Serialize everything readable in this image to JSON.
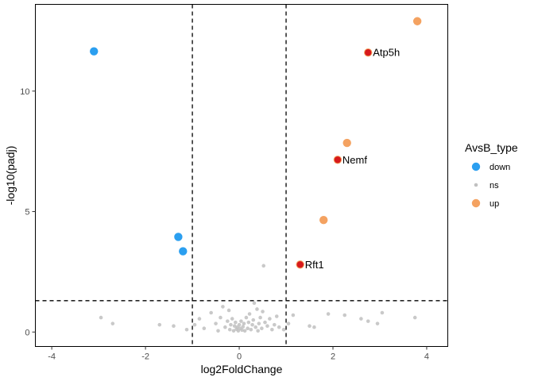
{
  "chart_data": {
    "type": "scatter",
    "title": "",
    "xlabel": "log2FoldChange",
    "ylabel": "-log10(padj)",
    "xlim": [
      -4.35,
      4.45
    ],
    "ylim": [
      -0.6,
      13.6
    ],
    "x_ticks": [
      -4,
      -2,
      0,
      2,
      4
    ],
    "y_ticks": [
      0,
      5,
      10
    ],
    "x_tick_labels": [
      "-4",
      "-2",
      "0",
      "2",
      "4"
    ],
    "y_tick_labels": [
      "0",
      "5",
      "10"
    ],
    "grid": false,
    "thresholds": {
      "log2fc": [
        -1,
        1
      ],
      "neg_log10_padj": 1.3
    },
    "colors": {
      "down": "#2b9ff0",
      "ns": "#c0c0c0",
      "up": "#f4a261",
      "highlight": "#d7191c"
    },
    "legend": {
      "title": "AvsB_type",
      "position": "right",
      "entries": [
        {
          "label": "down",
          "color": "#2b9ff0",
          "kind": "big"
        },
        {
          "label": "ns",
          "color": "#c0c0c0",
          "kind": "small"
        },
        {
          "label": "up",
          "color": "#f4a261",
          "kind": "big"
        }
      ]
    },
    "series": [
      {
        "name": "down",
        "points": [
          {
            "x": -3.1,
            "y": 11.65
          },
          {
            "x": -1.3,
            "y": 3.95
          },
          {
            "x": -1.2,
            "y": 3.35
          }
        ]
      },
      {
        "name": "up",
        "points": [
          {
            "x": 3.8,
            "y": 12.9
          },
          {
            "x": 2.75,
            "y": 11.6
          },
          {
            "x": 2.3,
            "y": 7.85
          },
          {
            "x": 2.1,
            "y": 7.15
          },
          {
            "x": 1.8,
            "y": 4.65
          },
          {
            "x": 1.3,
            "y": 2.8
          }
        ]
      },
      {
        "name": "ns",
        "points": [
          {
            "x": -2.95,
            "y": 0.6
          },
          {
            "x": -2.7,
            "y": 0.35
          },
          {
            "x": -1.7,
            "y": 0.3
          },
          {
            "x": -1.4,
            "y": 0.25
          },
          {
            "x": -1.12,
            "y": 0.1
          },
          {
            "x": -0.95,
            "y": 0.3
          },
          {
            "x": -0.85,
            "y": 0.55
          },
          {
            "x": -0.75,
            "y": 0.15
          },
          {
            "x": -0.6,
            "y": 0.8
          },
          {
            "x": -0.5,
            "y": 0.35
          },
          {
            "x": -0.45,
            "y": 0.05
          },
          {
            "x": -0.4,
            "y": 0.6
          },
          {
            "x": -0.35,
            "y": 1.05
          },
          {
            "x": -0.3,
            "y": 0.2
          },
          {
            "x": -0.25,
            "y": 0.45
          },
          {
            "x": -0.22,
            "y": 0.9
          },
          {
            "x": -0.2,
            "y": 0.1
          },
          {
            "x": -0.18,
            "y": 0.3
          },
          {
            "x": -0.15,
            "y": 0.55
          },
          {
            "x": -0.12,
            "y": 0.05
          },
          {
            "x": -0.1,
            "y": 0.25
          },
          {
            "x": -0.08,
            "y": 0.4
          },
          {
            "x": -0.06,
            "y": 0.12
          },
          {
            "x": -0.04,
            "y": 0.2
          },
          {
            "x": -0.02,
            "y": 0.05
          },
          {
            "x": 0.0,
            "y": 0.3
          },
          {
            "x": 0.02,
            "y": 0.15
          },
          {
            "x": 0.04,
            "y": 0.45
          },
          {
            "x": 0.06,
            "y": 0.08
          },
          {
            "x": 0.08,
            "y": 0.22
          },
          {
            "x": 0.1,
            "y": 0.35
          },
          {
            "x": 0.12,
            "y": 0.05
          },
          {
            "x": 0.15,
            "y": 0.6
          },
          {
            "x": 0.18,
            "y": 0.15
          },
          {
            "x": 0.2,
            "y": 0.4
          },
          {
            "x": 0.22,
            "y": 0.75
          },
          {
            "x": 0.25,
            "y": 0.1
          },
          {
            "x": 0.28,
            "y": 0.3
          },
          {
            "x": 0.3,
            "y": 0.5
          },
          {
            "x": 0.32,
            "y": 1.2
          },
          {
            "x": 0.35,
            "y": 0.2
          },
          {
            "x": 0.38,
            "y": 0.95
          },
          {
            "x": 0.4,
            "y": 0.05
          },
          {
            "x": 0.42,
            "y": 0.35
          },
          {
            "x": 0.45,
            "y": 0.6
          },
          {
            "x": 0.48,
            "y": 0.15
          },
          {
            "x": 0.5,
            "y": 0.85
          },
          {
            "x": 0.52,
            "y": 2.75
          },
          {
            "x": 0.55,
            "y": 0.4
          },
          {
            "x": 0.6,
            "y": 0.25
          },
          {
            "x": 0.65,
            "y": 0.55
          },
          {
            "x": 0.7,
            "y": 0.1
          },
          {
            "x": 0.75,
            "y": 0.3
          },
          {
            "x": 0.8,
            "y": 0.65
          },
          {
            "x": 0.85,
            "y": 0.2
          },
          {
            "x": 0.95,
            "y": 0.1
          },
          {
            "x": 1.05,
            "y": 0.35
          },
          {
            "x": 1.15,
            "y": 0.7
          },
          {
            "x": 1.5,
            "y": 0.25
          },
          {
            "x": 1.6,
            "y": 0.2
          },
          {
            "x": 1.9,
            "y": 0.75
          },
          {
            "x": 2.25,
            "y": 0.7
          },
          {
            "x": 2.6,
            "y": 0.55
          },
          {
            "x": 2.75,
            "y": 0.45
          },
          {
            "x": 2.95,
            "y": 0.35
          },
          {
            "x": 3.05,
            "y": 0.8
          },
          {
            "x": 3.75,
            "y": 0.6
          }
        ]
      }
    ],
    "annotations": [
      {
        "label": "Atp5h",
        "x": 2.75,
        "y": 11.6
      },
      {
        "label": "Nemf",
        "x": 2.1,
        "y": 7.15
      },
      {
        "label": "Rft1",
        "x": 1.3,
        "y": 2.8
      }
    ]
  }
}
